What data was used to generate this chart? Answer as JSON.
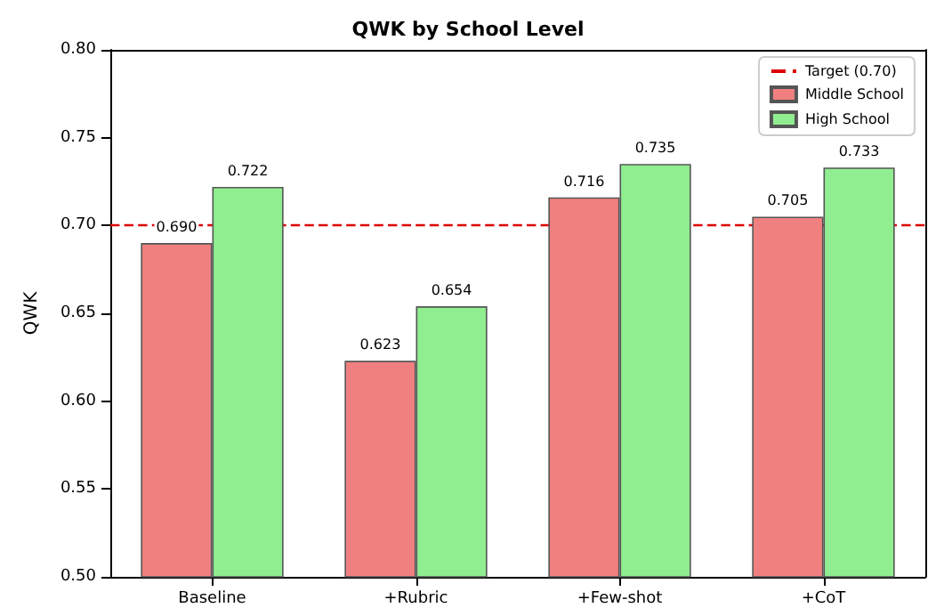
{
  "chart_data": {
    "type": "bar",
    "title": "QWK by School Level",
    "ylabel": "QWK",
    "categories": [
      "Baseline",
      "+Rubric",
      "+Few-shot",
      "+CoT"
    ],
    "series": [
      {
        "name": "Middle School",
        "color": "#f08080",
        "values": [
          0.69,
          0.623,
          0.716,
          0.705
        ],
        "value_labels": [
          "0.690",
          "0.623",
          "0.716",
          "0.705"
        ]
      },
      {
        "name": "High School",
        "color": "#90ee90",
        "values": [
          0.722,
          0.654,
          0.735,
          0.733
        ],
        "value_labels": [
          "0.722",
          "0.654",
          "0.735",
          "0.733"
        ]
      }
    ],
    "ylim": [
      0.5,
      0.8
    ],
    "yticks": [
      {
        "value": 0.5,
        "label": "0.50"
      },
      {
        "value": 0.55,
        "label": "0.55"
      },
      {
        "value": 0.6,
        "label": "0.60"
      },
      {
        "value": 0.65,
        "label": "0.65"
      },
      {
        "value": 0.7,
        "label": "0.70"
      },
      {
        "value": 0.75,
        "label": "0.75"
      },
      {
        "value": 0.8,
        "label": "0.80"
      }
    ],
    "ref_lines": [
      {
        "axis": "y",
        "value": 0.7,
        "label": "Target (0.70)",
        "color": "#dd0000",
        "line_style": "dashed"
      }
    ],
    "legend": "top right"
  }
}
